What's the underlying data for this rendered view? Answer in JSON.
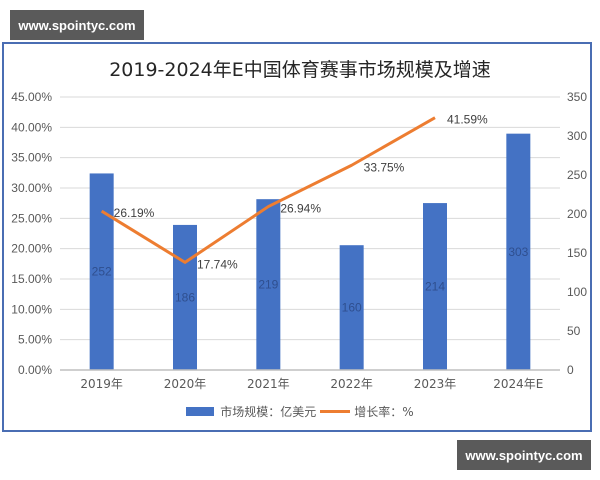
{
  "watermark": {
    "top_text": "www.spointyc.com",
    "bottom_text": "www.spointyc.com"
  },
  "title": {
    "year_range": "2019-2024",
    "suffix": "年E中国体育赛事市场规模及增速",
    "full": "2019-2024年E中国体育赛事市场规模及增速"
  },
  "legend": {
    "bar_label": "市场规模：亿美元",
    "line_label": "增长率：%"
  },
  "colors": {
    "bar": "#4472c4",
    "line": "#ed7d31",
    "frame": "#4a6db3",
    "grid": "#d9d9d9",
    "axis_text": "#595959"
  },
  "chart_data": {
    "type": "bar+line",
    "title": "2019-2024年E中国体育赛事市场规模及增速",
    "categories": [
      "2019年",
      "2020年",
      "2021年",
      "2022年",
      "2023年",
      "2024年E"
    ],
    "series": [
      {
        "name": "市场规模：亿美元",
        "type": "bar",
        "axis": "right",
        "values": [
          252,
          186,
          219,
          160,
          214,
          303
        ],
        "labels": [
          "252",
          "186",
          "219",
          "160",
          "214",
          "303"
        ]
      },
      {
        "name": "增长率：%",
        "type": "line",
        "axis": "left",
        "values": [
          26.19,
          17.74,
          26.94,
          33.75,
          41.59,
          null
        ],
        "labels": [
          "26.19%",
          "17.74%",
          "26.94%",
          "33.75%",
          "41.59%",
          ""
        ]
      }
    ],
    "left_axis": {
      "ylim": [
        0,
        45
      ],
      "ticks": [
        "0.00%",
        "5.00%",
        "10.00%",
        "15.00%",
        "20.00%",
        "25.00%",
        "30.00%",
        "35.00%",
        "40.00%",
        "45.00%"
      ]
    },
    "right_axis": {
      "ylim": [
        0,
        350
      ],
      "ticks": [
        "0",
        "50",
        "100",
        "150",
        "200",
        "250",
        "300",
        "350"
      ]
    },
    "grid": true,
    "legend_position": "bottom"
  }
}
